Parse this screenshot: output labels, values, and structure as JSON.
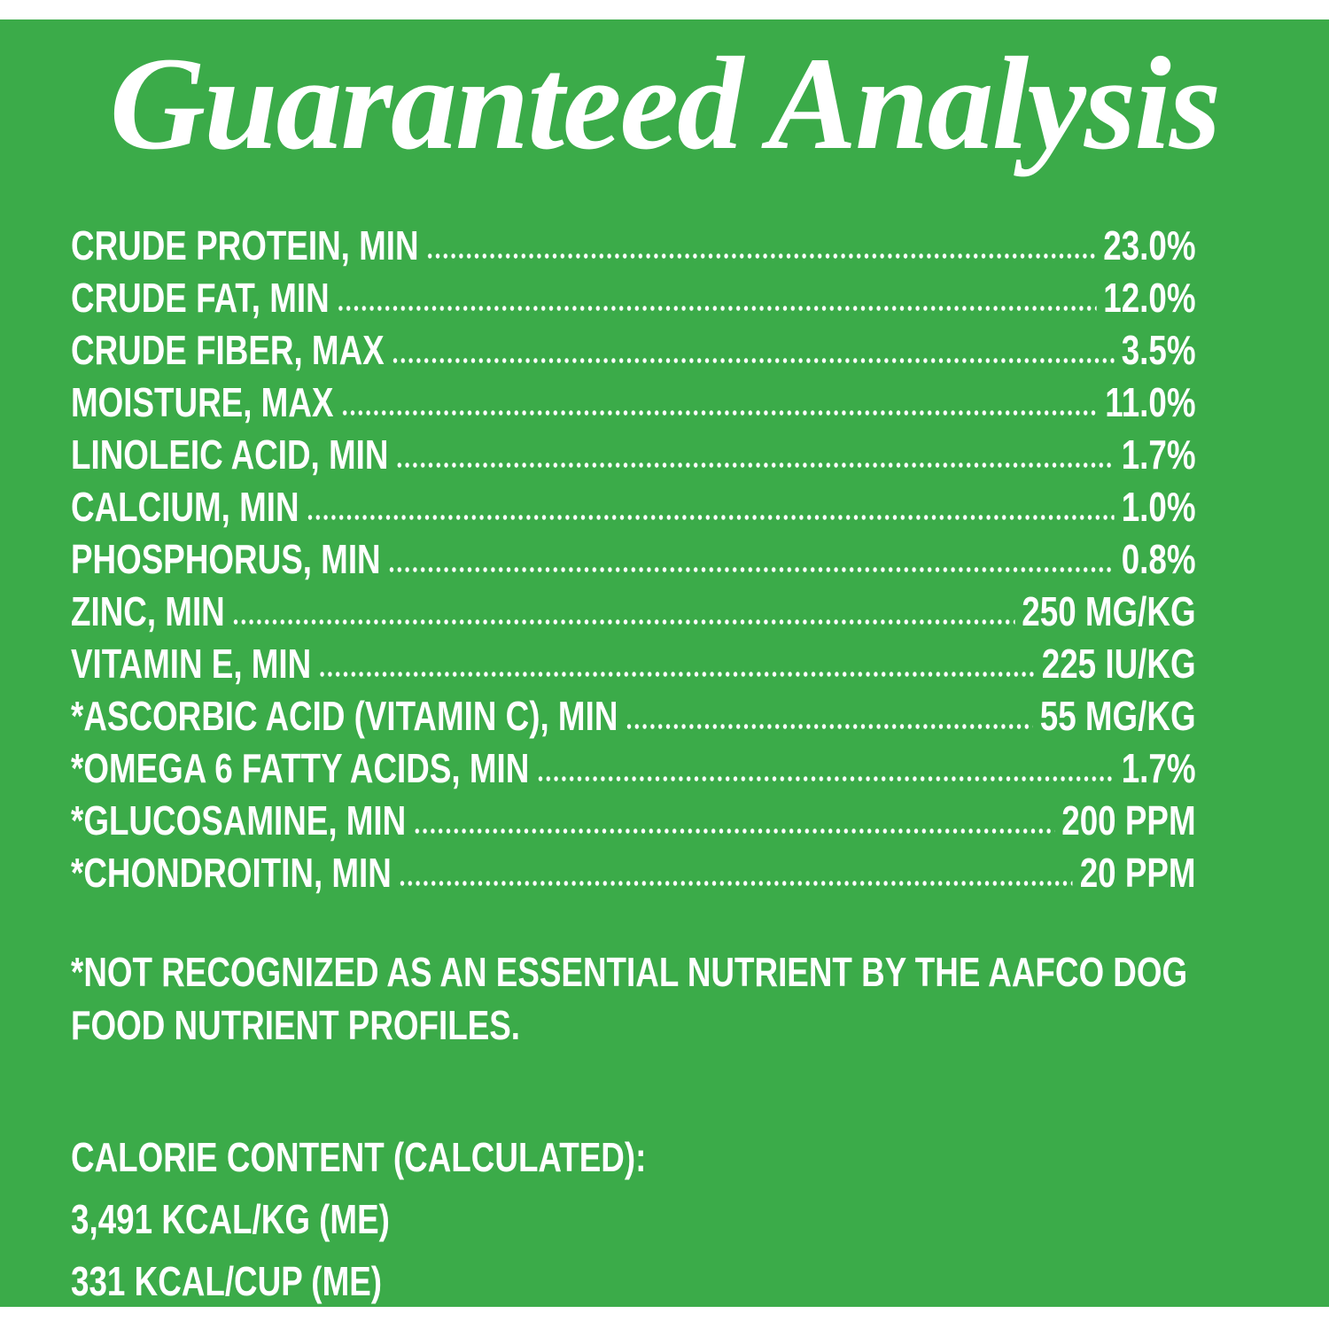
{
  "title": "Guaranteed Analysis",
  "rows": [
    {
      "label": "CRUDE PROTEIN, MIN",
      "value": "23.0%"
    },
    {
      "label": "CRUDE FAT, MIN",
      "value": "12.0%"
    },
    {
      "label": "CRUDE FIBER, MAX",
      "value": "3.5%"
    },
    {
      "label": "MOISTURE, MAX",
      "value": "11.0%"
    },
    {
      "label": "LINOLEIC ACID, MIN",
      "value": "1.7%"
    },
    {
      "label": "CALCIUM, MIN",
      "value": "1.0%"
    },
    {
      "label": "PHOSPHORUS, MIN",
      "value": "0.8%"
    },
    {
      "label": "ZINC, MIN",
      "value": "250 MG/KG"
    },
    {
      "label": "VITAMIN E, MIN",
      "value": "225 IU/KG"
    },
    {
      "label": "*ASCORBIC ACID (VITAMIN C), MIN",
      "value": "55 MG/KG"
    },
    {
      "label": "*OMEGA 6 FATTY ACIDS, MIN",
      "value": "1.7%"
    },
    {
      "label": "*GLUCOSAMINE, MIN",
      "value": "200 PPM"
    },
    {
      "label": "*CHONDROITIN, MIN",
      "value": "20 PPM"
    }
  ],
  "note": "*NOT RECOGNIZED AS AN ESSENTIAL NUTRIENT BY THE AAFCO DOG FOOD NUTRIENT PROFILES.",
  "calorie": {
    "heading": "CALORIE CONTENT (CALCULATED):",
    "lines": [
      "3,491 KCAL/KG (ME)",
      "331 KCAL/CUP (ME)"
    ]
  }
}
